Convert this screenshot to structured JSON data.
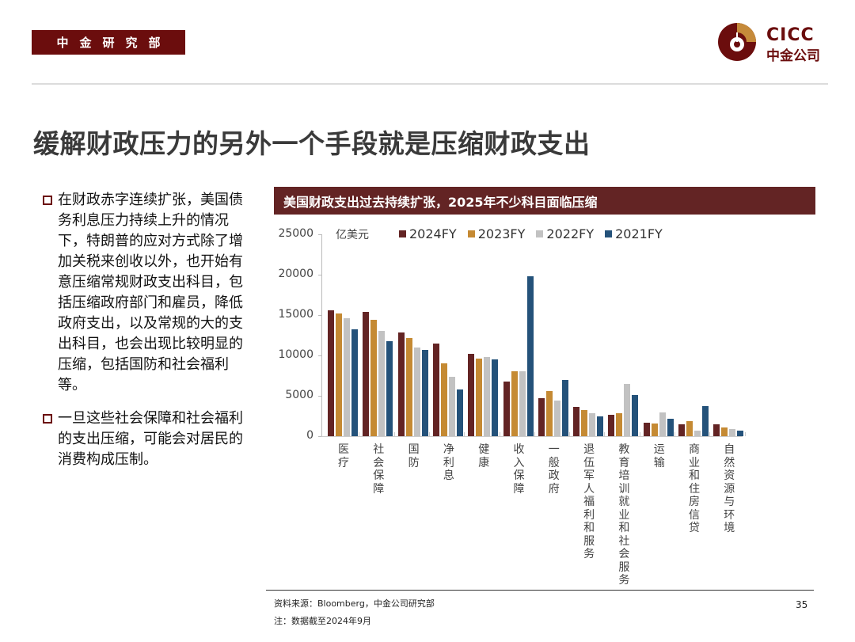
{
  "header": {
    "department": "中金研究部",
    "logo_en": "CICC",
    "logo_cn": "中金公司",
    "brand_color": "#6b0d0d",
    "accent_gold": "#c58a3a"
  },
  "page_title": "缓解财政压力的另外一个手段就是压缩财政支出",
  "bullets": [
    {
      "text": "在财政赤字连续扩张，美国债务利息压力持续上升的情况下，特朗普的应对方式除了增加关税来创收以外，也开始有意压缩常规财政支出科目，包括压缩政府部门和雇员，降低政府支出，以及常规的大的支出科目，也会出现比较明显的压缩，包括国防和社会福利等。"
    },
    {
      "text": "一旦这些社会保障和社会福利的支出压缩，可能会对居民的消费构成压制。"
    }
  ],
  "chart_banner": "美国财政支出过去持续扩张，2025年不少科目面临压缩",
  "chart_data": {
    "type": "bar",
    "title": "美国财政支出过去持续扩张，2025年不少科目面临压缩",
    "unit_label": "亿美元",
    "xlabel": "",
    "ylabel": "亿美元",
    "ylim": [
      0,
      25000
    ],
    "yticks": [
      "0",
      "5000",
      "10000",
      "15000",
      "20000",
      "25000"
    ],
    "grid": false,
    "legend_position": "top",
    "categories": [
      "医疗",
      "社会保障",
      "国防",
      "净利息",
      "健康",
      "收入保障",
      "一般政府",
      "退伍军人福利和服务",
      "教育培训就业和社会服务",
      "运输",
      "商业和住房信贷",
      "自然资源与环境"
    ],
    "series": [
      {
        "name": "2024FY",
        "color": "#632424",
        "values": [
          15600,
          15400,
          12800,
          11500,
          10200,
          6800,
          4700,
          3600,
          2600,
          1700,
          1500,
          1500
        ]
      },
      {
        "name": "2023FY",
        "color": "#c58a33",
        "values": [
          15200,
          14400,
          12200,
          9000,
          9600,
          8000,
          5600,
          3200,
          2800,
          1600,
          1900,
          1100
        ]
      },
      {
        "name": "2022FY",
        "color": "#c2c2c2",
        "values": [
          14600,
          13000,
          11000,
          7400,
          9800,
          8000,
          4400,
          2800,
          6500,
          2900,
          700,
          900
        ]
      },
      {
        "name": "2021FY",
        "color": "#24527a",
        "values": [
          13200,
          11800,
          10700,
          5800,
          9500,
          19800,
          7000,
          2500,
          5100,
          2200,
          3700,
          700
        ]
      }
    ]
  },
  "footer": {
    "source": "资料来源：Bloomberg，中金公司研究部",
    "note": "注：数据截至2024年9月",
    "page_number": "35"
  }
}
